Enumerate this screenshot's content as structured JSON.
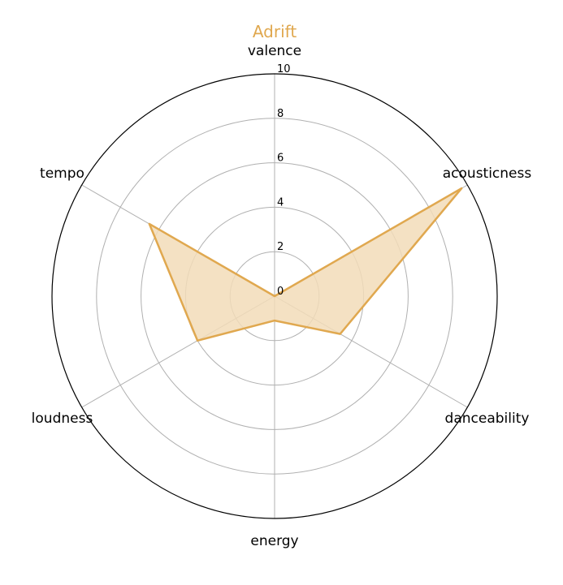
{
  "chart_data": {
    "type": "radar",
    "title": "Adrift",
    "axes": [
      "valence",
      "acousticness",
      "danceability",
      "energy",
      "loudness",
      "tempo"
    ],
    "ticks": [
      0,
      2,
      4,
      6,
      8,
      10
    ],
    "rlim": [
      0,
      10
    ],
    "grid": true,
    "series": [
      {
        "name": "Adrift",
        "values": [
          0.0,
          9.7,
          3.4,
          1.1,
          4.0,
          6.5
        ]
      }
    ],
    "colors": {
      "series": "#e0a84f",
      "fill": "#f2dcb8",
      "grid": "#b0b0b0",
      "outer": "#000000"
    }
  }
}
